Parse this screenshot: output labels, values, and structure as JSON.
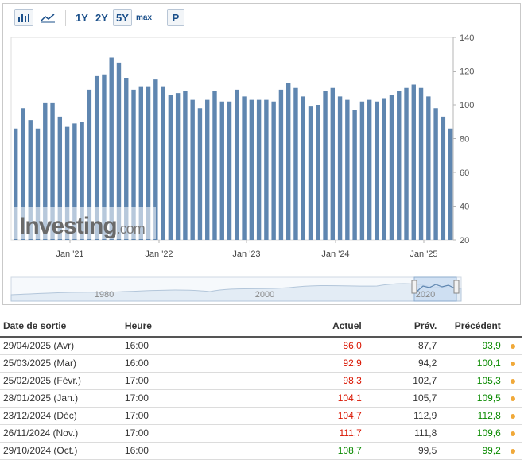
{
  "toolbar": {
    "bar_chart_icon": "bar-chart-icon",
    "line_chart_icon": "line-chart-icon",
    "ranges": [
      "1Y",
      "2Y",
      "5Y",
      "max"
    ],
    "selected_range": "5Y",
    "p_label": "P"
  },
  "chart_data": {
    "type": "bar",
    "ylim": [
      20,
      140
    ],
    "yticks": [
      20,
      40,
      60,
      80,
      100,
      120,
      140
    ],
    "x_tick_labels": [
      "Jan '21",
      "Jan '22",
      "Jan '23",
      "Jan '24",
      "Jan '25"
    ],
    "values": [
      86,
      98,
      91,
      86,
      101,
      101,
      93,
      87,
      89,
      90,
      109,
      117,
      118,
      128,
      125,
      116,
      109,
      111,
      111,
      115,
      111,
      106,
      107,
      108,
      103,
      98,
      103,
      108,
      102,
      102,
      109,
      105,
      103,
      103,
      103,
      102,
      109,
      113,
      110,
      105,
      99,
      100,
      108,
      110,
      105,
      103,
      97,
      102,
      103,
      102,
      104,
      106,
      108,
      110,
      112,
      110,
      105,
      98,
      93,
      86
    ],
    "bar_color": "#5f86b0",
    "watermark": "Investing.com",
    "navigator_labels": [
      "1980",
      "2000",
      "2020"
    ]
  },
  "table": {
    "headers": {
      "date": "Date de sortie",
      "time": "Heure",
      "actual": "Actuel",
      "forecast": "Prév.",
      "previous": "Précédent"
    },
    "rows": [
      {
        "date": "29/04/2025 (Avr)",
        "time": "16:00",
        "actual": "86,0",
        "actual_color": "neg",
        "forecast": "87,7",
        "previous": "93,9",
        "previous_color": "pos"
      },
      {
        "date": "25/03/2025 (Mar)",
        "time": "16:00",
        "actual": "92,9",
        "actual_color": "neg",
        "forecast": "94,2",
        "previous": "100,1",
        "previous_color": "pos"
      },
      {
        "date": "25/02/2025 (Févr.)",
        "time": "17:00",
        "actual": "98,3",
        "actual_color": "neg",
        "forecast": "102,7",
        "previous": "105,3",
        "previous_color": "pos"
      },
      {
        "date": "28/01/2025 (Jan.)",
        "time": "17:00",
        "actual": "104,1",
        "actual_color": "neg",
        "forecast": "105,7",
        "previous": "109,5",
        "previous_color": "pos"
      },
      {
        "date": "23/12/2024 (Déc)",
        "time": "17:00",
        "actual": "104,7",
        "actual_color": "neg",
        "forecast": "112,9",
        "previous": "112,8",
        "previous_color": "pos"
      },
      {
        "date": "26/11/2024 (Nov.)",
        "time": "17:00",
        "actual": "111,7",
        "actual_color": "neg",
        "forecast": "111,8",
        "previous": "109,6",
        "previous_color": "pos"
      },
      {
        "date": "29/10/2024 (Oct.)",
        "time": "16:00",
        "actual": "108,7",
        "actual_color": "pos",
        "forecast": "99,5",
        "previous": "99,2",
        "previous_color": "pos"
      }
    ]
  }
}
